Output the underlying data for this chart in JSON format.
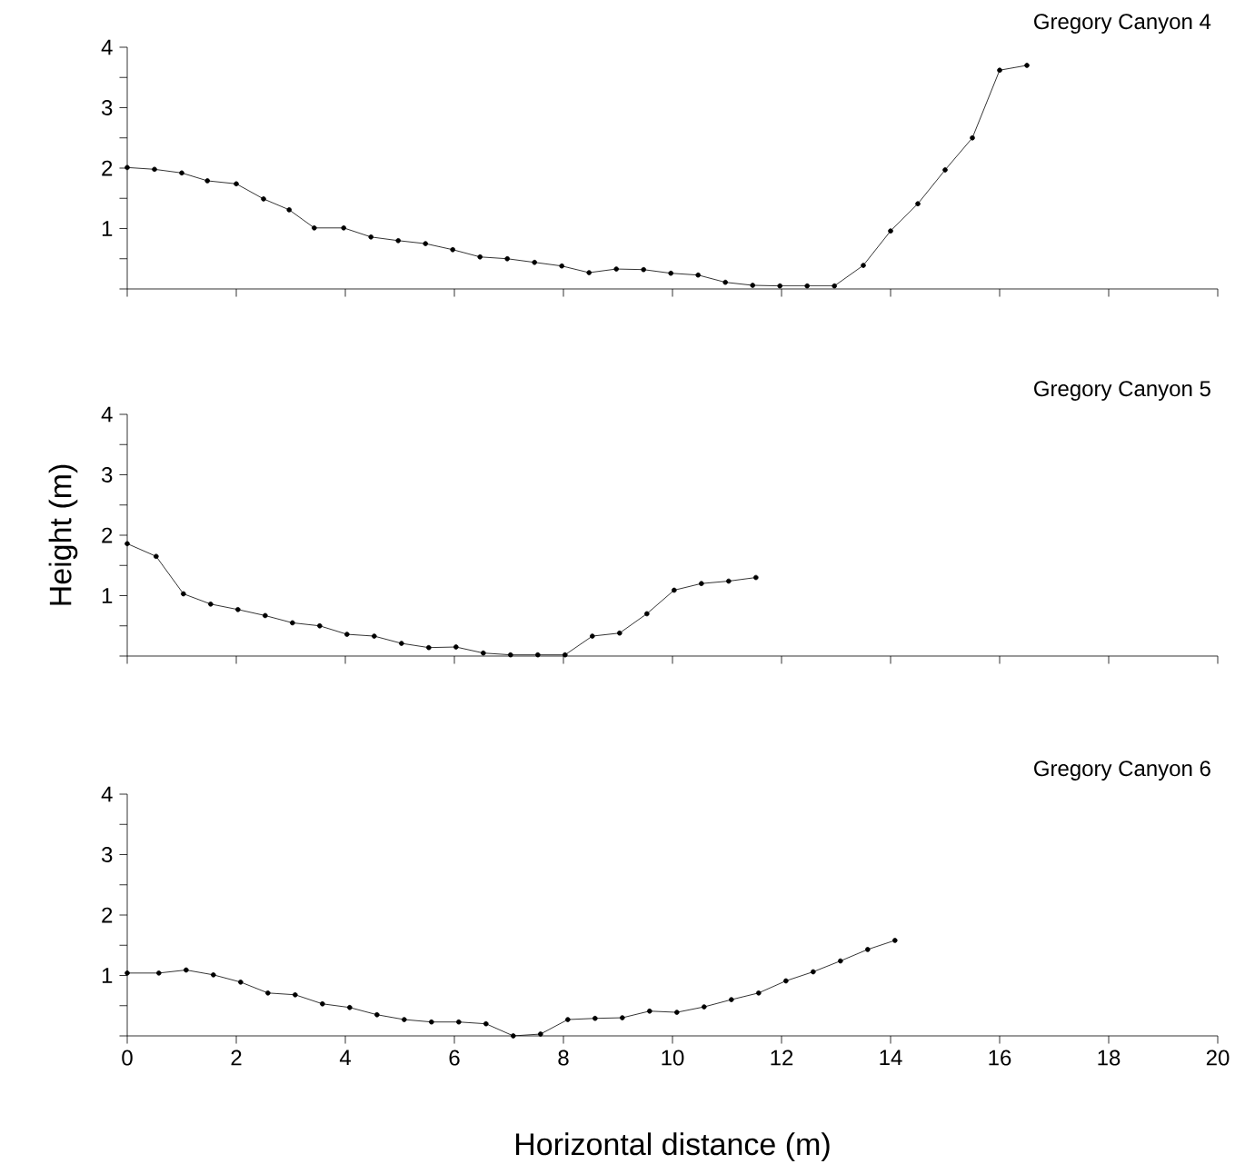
{
  "chart_data": [
    {
      "type": "line",
      "title": "Gregory Canyon 4",
      "marker": "circle",
      "line_style": "solid",
      "tick_labels": "y",
      "xlim": [
        0,
        20
      ],
      "ylim": [
        0,
        4
      ],
      "xticks": [
        0,
        2,
        4,
        6,
        8,
        10,
        12,
        14,
        16,
        18,
        20
      ],
      "yticks": [
        {
          "value": 0,
          "label": null
        },
        {
          "value": 0.5,
          "label": null
        },
        1,
        {
          "value": 1.5,
          "label": null
        },
        2,
        {
          "value": 2.5,
          "label": null
        },
        3,
        {
          "value": 3.5,
          "label": null
        },
        4
      ],
      "x": [
        0,
        0.5,
        1.0,
        1.47,
        2.0,
        2.5,
        2.97,
        3.43,
        3.97,
        4.47,
        4.97,
        5.47,
        5.97,
        6.47,
        6.97,
        7.47,
        7.97,
        8.47,
        8.97,
        9.47,
        9.97,
        10.47,
        10.97,
        11.47,
        11.97,
        12.47,
        12.97,
        13.5,
        14.0,
        14.5,
        15.0,
        15.5,
        16.0,
        16.5
      ],
      "values": [
        2.01,
        1.98,
        1.92,
        1.79,
        1.74,
        1.49,
        1.31,
        1.01,
        1.01,
        0.86,
        0.8,
        0.75,
        0.65,
        0.53,
        0.5,
        0.44,
        0.38,
        0.27,
        0.33,
        0.32,
        0.26,
        0.23,
        0.11,
        0.06,
        0.05,
        0.05,
        0.05,
        0.39,
        0.96,
        1.41,
        1.97,
        2.5,
        3.62,
        3.7
      ],
      "color": "#000000"
    },
    {
      "type": "line",
      "title": "Gregory Canyon 5",
      "ylabel": "Height (m)",
      "marker": "circle",
      "line_style": "solid",
      "tick_labels": "y",
      "xlim": [
        0,
        20
      ],
      "ylim": [
        0,
        4
      ],
      "xticks": [
        0,
        2,
        4,
        6,
        8,
        10,
        12,
        14,
        16,
        18,
        20
      ],
      "yticks": [
        {
          "value": 0,
          "label": null
        },
        {
          "value": 0.5,
          "label": null
        },
        1,
        {
          "value": 1.5,
          "label": null
        },
        2,
        {
          "value": 2.5,
          "label": null
        },
        3,
        {
          "value": 3.5,
          "label": null
        },
        4
      ],
      "x": [
        0,
        0.53,
        1.03,
        1.53,
        2.03,
        2.53,
        3.03,
        3.53,
        4.03,
        4.53,
        5.03,
        5.53,
        6.03,
        6.53,
        7.03,
        7.53,
        8.03,
        8.53,
        9.03,
        9.53,
        10.03,
        10.53,
        11.03,
        11.53
      ],
      "values": [
        1.86,
        1.65,
        1.03,
        0.86,
        0.77,
        0.67,
        0.55,
        0.5,
        0.36,
        0.33,
        0.21,
        0.14,
        0.15,
        0.05,
        0.02,
        0.02,
        0.02,
        0.33,
        0.38,
        0.7,
        1.09,
        1.2,
        1.24,
        1.3
      ],
      "color": "#000000"
    },
    {
      "type": "line",
      "title": "Gregory Canyon 6",
      "xlabel": "Horizontal distance (m)",
      "marker": "circle",
      "line_style": "solid",
      "xlim": [
        0,
        20
      ],
      "ylim": [
        0,
        4
      ],
      "xticks": [
        0,
        2,
        4,
        6,
        8,
        10,
        12,
        14,
        16,
        18,
        20
      ],
      "yticks": [
        {
          "value": 0,
          "label": null
        },
        {
          "value": 0.5,
          "label": null
        },
        1,
        {
          "value": 1.5,
          "label": null
        },
        2,
        {
          "value": 2.5,
          "label": null
        },
        3,
        {
          "value": 3.5,
          "label": null
        },
        4
      ],
      "x": [
        0,
        0.58,
        1.08,
        1.58,
        2.08,
        2.58,
        3.08,
        3.58,
        4.08,
        4.58,
        5.08,
        5.58,
        6.08,
        6.58,
        7.08,
        7.58,
        8.08,
        8.58,
        9.08,
        9.58,
        10.08,
        10.58,
        11.08,
        11.58,
        12.08,
        12.58,
        13.08,
        13.58,
        14.08
      ],
      "values": [
        1.04,
        1.04,
        1.09,
        1.01,
        0.89,
        0.71,
        0.68,
        0.53,
        0.47,
        0.35,
        0.27,
        0.23,
        0.23,
        0.2,
        0.0,
        0.03,
        0.27,
        0.29,
        0.3,
        0.41,
        0.39,
        0.48,
        0.6,
        0.71,
        0.91,
        1.06,
        1.24,
        1.43,
        1.58
      ],
      "color": "#000000"
    }
  ]
}
